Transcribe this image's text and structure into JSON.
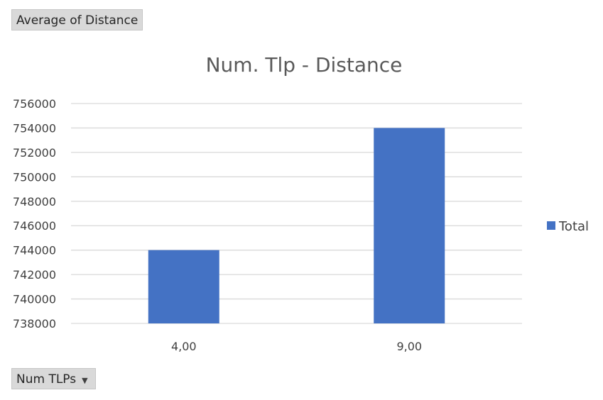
{
  "pivot_fields": {
    "value_field_label": "Average of Distance",
    "axis_field_label": "Num TLPs",
    "axis_field_dropdown_icon": "chevron-down-icon"
  },
  "chart_data": {
    "type": "bar",
    "title": "Num. Tlp - Distance",
    "xlabel": "",
    "ylabel": "",
    "categories": [
      "4,00",
      "9,00"
    ],
    "series": [
      {
        "name": "Total",
        "values": [
          744000,
          754000
        ],
        "color": "#4472c4"
      }
    ],
    "ylim": [
      738000,
      756000
    ],
    "yticks": [
      738000,
      740000,
      742000,
      744000,
      746000,
      748000,
      750000,
      752000,
      754000,
      756000
    ],
    "grid": true,
    "legend": "right"
  },
  "colors": {
    "gridline": "#d9d9d9",
    "axis_line": "#d9d9d9",
    "field_button_bg": "#d9d9d9"
  }
}
